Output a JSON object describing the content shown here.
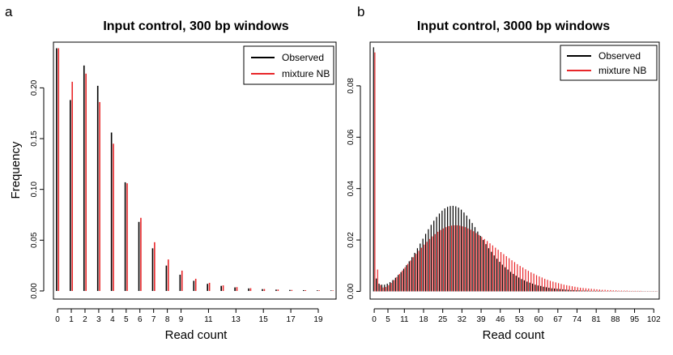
{
  "colors": {
    "observed": "#000000",
    "mixture": "#e8272a"
  },
  "chart_data": [
    {
      "type": "bar",
      "panel_letter": "a",
      "title": "Input control, 300 bp windows",
      "xlabel": "Read count",
      "ylabel": "Frequency",
      "xlim": [
        -0.3,
        20.3
      ],
      "ylim": [
        -0.008,
        0.245
      ],
      "xticks": [
        0,
        1,
        2,
        3,
        4,
        5,
        6,
        7,
        8,
        9,
        11,
        13,
        15,
        17,
        19
      ],
      "yticks": [
        0.0,
        0.05,
        0.1,
        0.15,
        0.2
      ],
      "ytick_labels": [
        "0.00",
        "0.05",
        "0.10",
        "0.15",
        "0.20"
      ],
      "legend": {
        "position": "top-right",
        "entries": [
          "Observed",
          "mixture NB"
        ]
      },
      "x": [
        0,
        1,
        2,
        3,
        4,
        5,
        6,
        7,
        8,
        9,
        10,
        11,
        12,
        13,
        14,
        15,
        16,
        17,
        18,
        19,
        20
      ],
      "series": [
        {
          "name": "Observed",
          "values": [
            0.239,
            0.188,
            0.222,
            0.202,
            0.156,
            0.107,
            0.068,
            0.042,
            0.025,
            0.016,
            0.01,
            0.007,
            0.005,
            0.0035,
            0.0025,
            0.0018,
            0.0013,
            0.001,
            0.0008,
            0.0006,
            0.0005
          ]
        },
        {
          "name": "mixture NB",
          "values": [
            0.239,
            0.206,
            0.214,
            0.186,
            0.145,
            0.106,
            0.072,
            0.048,
            0.031,
            0.02,
            0.012,
            0.008,
            0.0055,
            0.0038,
            0.0027,
            0.0019,
            0.0014,
            0.001,
            0.0008,
            0.0006,
            0.0005
          ]
        }
      ]
    },
    {
      "type": "bar",
      "panel_letter": "b",
      "title": "Input control, 3000 bp windows",
      "xlabel": "Read count",
      "ylabel": "",
      "xlim": [
        -1.5,
        104
      ],
      "ylim": [
        -0.003,
        0.097
      ],
      "xticks": [
        0,
        5,
        11,
        18,
        25,
        32,
        39,
        46,
        53,
        60,
        67,
        74,
        81,
        88,
        95,
        102
      ],
      "yticks": [
        0.0,
        0.02,
        0.04,
        0.06,
        0.08
      ],
      "ytick_labels": [
        "0.00",
        "0.02",
        "0.04",
        "0.06",
        "0.08"
      ],
      "legend": {
        "position": "top-right",
        "entries": [
          "Observed",
          "mixture NB"
        ]
      },
      "x_range": [
        0,
        103
      ],
      "series": [
        {
          "name": "Observed",
          "values": [
            0.095,
            0.005,
            0.003,
            0.0026,
            0.0026,
            0.003,
            0.0036,
            0.0044,
            0.0053,
            0.0064,
            0.0075,
            0.0088,
            0.0102,
            0.0117,
            0.0133,
            0.015,
            0.0168,
            0.0186,
            0.0205,
            0.0224,
            0.0242,
            0.0259,
            0.0275,
            0.029,
            0.0303,
            0.0314,
            0.0323,
            0.0329,
            0.0332,
            0.0333,
            0.0331,
            0.0326,
            0.0318,
            0.0307,
            0.0295,
            0.0281,
            0.0266,
            0.025,
            0.0233,
            0.0216,
            0.02,
            0.0184,
            0.0168,
            0.0154,
            0.014,
            0.0127,
            0.0115,
            0.0104,
            0.0094,
            0.0085,
            0.0076,
            0.0068,
            0.0061,
            0.0054,
            0.0048,
            0.0043,
            0.0038,
            0.0034,
            0.003,
            0.0026,
            0.0023,
            0.0021,
            0.0018,
            0.0016,
            0.0014,
            0.0012,
            0.0011,
            0.001,
            0.0009,
            0.0008,
            0.0007,
            0.0006,
            0.0005,
            0.0005,
            0.0004,
            0.0004,
            0.0003,
            0.0003,
            0.0003,
            0.0002,
            0.0002,
            0.0002,
            0.0002,
            0.0002,
            0.0001,
            0.0001,
            0.0001,
            0.0001,
            0.0001,
            0.0001,
            0.0001,
            0.0001,
            0.0001,
            0.0001,
            0.0001,
            0.0001,
            0.0001,
            0.0001,
            0.0001,
            0.0001,
            0.0001,
            0.0001,
            0.0001,
            0.0001
          ]
        },
        {
          "name": "mixture NB",
          "values": [
            0.093,
            0.0085,
            0.0025,
            0.0015,
            0.0017,
            0.0024,
            0.0033,
            0.0044,
            0.0056,
            0.0068,
            0.0081,
            0.0094,
            0.0107,
            0.012,
            0.0133,
            0.0146,
            0.0158,
            0.017,
            0.0182,
            0.0193,
            0.0204,
            0.0214,
            0.0223,
            0.0232,
            0.0239,
            0.0245,
            0.025,
            0.0254,
            0.0256,
            0.0257,
            0.0257,
            0.0256,
            0.0253,
            0.025,
            0.0245,
            0.024,
            0.0234,
            0.0227,
            0.022,
            0.0212,
            0.0204,
            0.0196,
            0.0187,
            0.0179,
            0.017,
            0.0162,
            0.0153,
            0.0145,
            0.0137,
            0.0129,
            0.0121,
            0.0114,
            0.0106,
            0.0099,
            0.0093,
            0.0086,
            0.008,
            0.0074,
            0.0069,
            0.0063,
            0.0058,
            0.0054,
            0.0049,
            0.0045,
            0.0041,
            0.0038,
            0.0035,
            0.0032,
            0.0029,
            0.0026,
            0.0024,
            0.0022,
            0.002,
            0.0018,
            0.0016,
            0.0014,
            0.0013,
            0.0012,
            0.0011,
            0.001,
            0.0009,
            0.0008,
            0.0007,
            0.0006,
            0.0006,
            0.0005,
            0.0005,
            0.0004,
            0.0004,
            0.0003,
            0.0003,
            0.0003,
            0.0003,
            0.0002,
            0.0002,
            0.0002,
            0.0002,
            0.0002,
            0.0001,
            0.0001,
            0.0001,
            0.0001,
            0.0001,
            0.0001
          ]
        }
      ]
    }
  ]
}
